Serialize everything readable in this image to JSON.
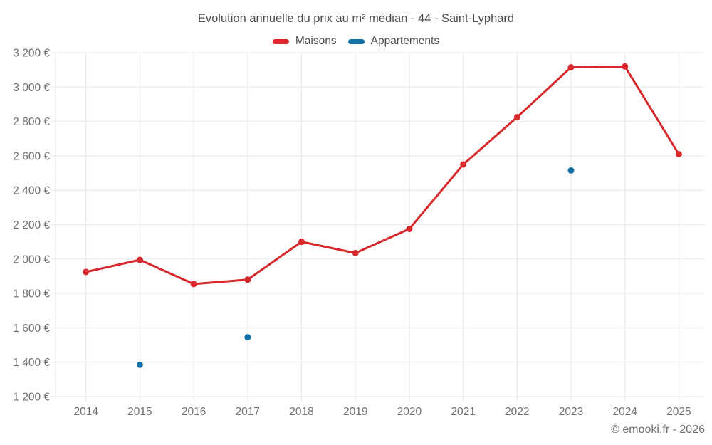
{
  "footer": "© emooki.fr - 2026",
  "chart_data": {
    "type": "line",
    "title": "Evolution annuelle du prix au m² médian - 44 - Saint-Lyphard",
    "categories": [
      2014,
      2015,
      2016,
      2017,
      2018,
      2019,
      2020,
      2021,
      2022,
      2023,
      2024,
      2025
    ],
    "series": [
      {
        "name": "Maisons",
        "type": "line",
        "color": "#d7282c",
        "values": [
          1925,
          1995,
          1855,
          1880,
          2100,
          2035,
          2175,
          2550,
          2825,
          3115,
          3120,
          2610
        ]
      },
      {
        "name": "Appartements",
        "type": "scatter",
        "color": "#1472a8",
        "values": [
          null,
          1385,
          null,
          1545,
          null,
          null,
          null,
          null,
          null,
          2515,
          null,
          null
        ]
      }
    ],
    "xlabel": "",
    "ylabel": "",
    "ylim": [
      1200,
      3200
    ],
    "ytick_step": 200,
    "ytick_suffix": " €",
    "grid": true,
    "grid_color": "#e8e8e8",
    "legend_position": "top"
  }
}
